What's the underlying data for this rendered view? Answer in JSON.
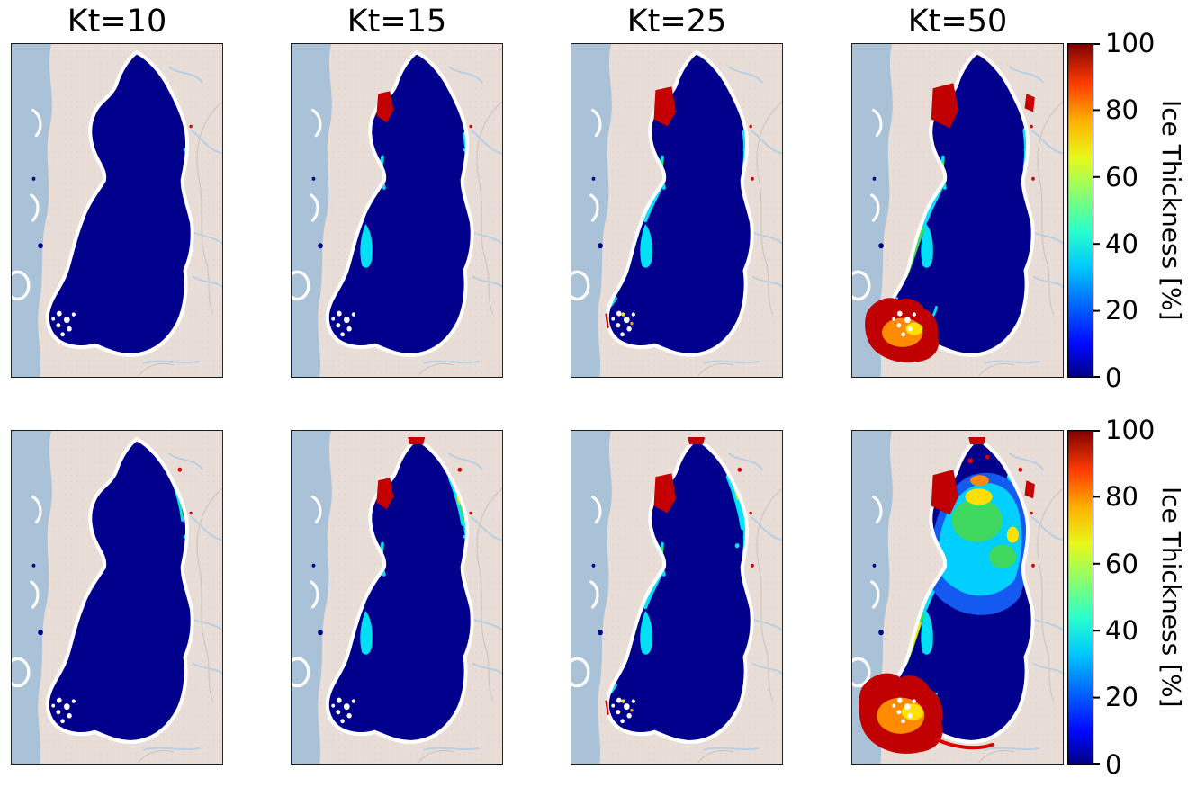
{
  "figure": {
    "column_titles": [
      "Kt=10",
      "Kt=15",
      "Kt=25",
      "Kt=50"
    ],
    "panels": [
      {
        "row": 0,
        "col": 0,
        "kt": 10,
        "level": 0
      },
      {
        "row": 0,
        "col": 1,
        "kt": 15,
        "level": 1
      },
      {
        "row": 0,
        "col": 2,
        "kt": 25,
        "level": 2
      },
      {
        "row": 0,
        "col": 3,
        "kt": 50,
        "level": 3
      },
      {
        "row": 1,
        "col": 0,
        "kt": 10,
        "level": 0
      },
      {
        "row": 1,
        "col": 1,
        "kt": 15,
        "level": 1
      },
      {
        "row": 1,
        "col": 2,
        "kt": 25,
        "level": 2
      },
      {
        "row": 1,
        "col": 3,
        "kt": 50,
        "level": 3
      }
    ],
    "colorbars": [
      {
        "label": "Ice Thickness [%]",
        "ticks": [
          0,
          20,
          40,
          60,
          80,
          100
        ]
      },
      {
        "label": "Ice Thickness [%]",
        "ticks": [
          0,
          20,
          40,
          60,
          80,
          100
        ]
      }
    ],
    "colors": {
      "land": "#e9ddd7",
      "sea": "#a9c2d8",
      "ice_zero": "#00008c",
      "contour": "#ffffff",
      "frame": "#1a1a1a",
      "river": "#b9cfe2",
      "border_line": "#cfc4bf",
      "jet_stops": [
        [
          "0%",
          "#000084"
        ],
        [
          "10%",
          "#0008ff"
        ],
        [
          "22%",
          "#0068ff"
        ],
        [
          "33%",
          "#00c8ff"
        ],
        [
          "44%",
          "#2cffca"
        ],
        [
          "55%",
          "#8aff6e"
        ],
        [
          "66%",
          "#e8f81a"
        ],
        [
          "77%",
          "#ffb000"
        ],
        [
          "88%",
          "#ff3c00"
        ],
        [
          "100%",
          "#800000"
        ]
      ]
    }
  },
  "chart_data": {
    "type": "heatmap",
    "title": "",
    "layout": "2 rows x 4 columns of geographic map panels, one shared vertical colorbar per row on the right",
    "column_titles": [
      "Kt=10",
      "Kt=15",
      "Kt=25",
      "Kt=50"
    ],
    "colorbar": {
      "label": "Ice Thickness [%]",
      "range": [
        0,
        100
      ],
      "ticks": [
        0,
        20,
        40,
        60,
        80,
        100
      ],
      "colormap": "jet"
    },
    "panels": [
      {
        "row": 1,
        "column": 1,
        "kt": 10,
        "summary": "Basin interior ~0% ice thickness (dark blue); only isolated near-100% cells on the northwest shore and along the southwest archipelago edge."
      },
      {
        "row": 1,
        "column": 2,
        "kt": 15,
        "summary": "Small red (~100%) patch on the northwest shore; thin cyan bands (~20-40%) along the west coast; scattered red cells along the southern archipelago."
      },
      {
        "row": 1,
        "column": 3,
        "kt": 25,
        "summary": "Larger red northwest patch; cyan/green edge bands extend along the west and east coasts; more red cells around the southwest archipelago."
      },
      {
        "row": 1,
        "column": 4,
        "kt": 50,
        "summary": "Extensive red/orange (~80-100%) over the southwest archipelago region; cyan-green-yellow bands along the west coast; red patches on the northeast shore; interior still ~0%."
      },
      {
        "row": 2,
        "column": 1,
        "kt": 10,
        "summary": "Like row 1 but with an added cyan/green band on the northeast edge and red cells at the northern tip."
      },
      {
        "row": 2,
        "column": 2,
        "kt": 15,
        "summary": "Red patches at the north and northwest shores; cyan/green band along the northeast edge; cyan bands on the west coast."
      },
      {
        "row": 2,
        "column": 3,
        "kt": 25,
        "summary": "Wider cyan/green northeast band with yellow cells; red shore patches grow; archipelago edge cells increase."
      },
      {
        "row": 2,
        "column": 4,
        "kt": 50,
        "summary": "Widespread elevated values: large cyan/green/yellow region (~30-70%) filling the upper basin interior, heavy red/orange over the southwest archipelago and south coast, red northeast shore patches."
      }
    ]
  }
}
